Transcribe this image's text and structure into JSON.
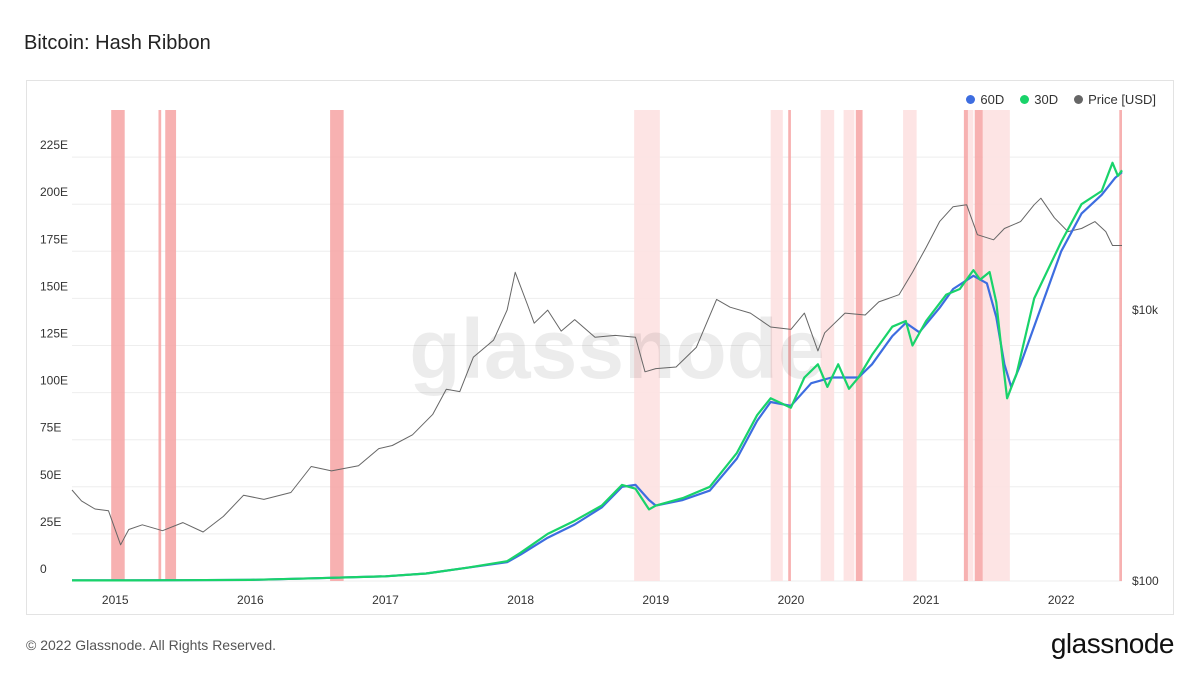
{
  "title": "Bitcoin: Hash Ribbon",
  "footer": "© 2022 Glassnode. All Rights Reserved.",
  "brand": "glassnode",
  "watermark": "glassnode",
  "colors": {
    "ma60": "#3d6de0",
    "ma30": "#19d36a",
    "price": "#666666",
    "band_dark": "#f6a3a3",
    "band_light": "#fde1e1",
    "grid": "#eeeeee"
  },
  "chart_data": {
    "type": "line",
    "title": "Bitcoin: Hash Ribbon",
    "legend": [
      {
        "name": "60D",
        "color": "#3d6de0"
      },
      {
        "name": "30D",
        "color": "#19d36a"
      },
      {
        "name": "Price [USD]",
        "color": "#666666"
      }
    ],
    "legend_position": "top-right",
    "x_range": [
      2014.68,
      2022.45
    ],
    "x_ticks": [
      {
        "v": 2015,
        "label": "2015"
      },
      {
        "v": 2016,
        "label": "2016"
      },
      {
        "v": 2017,
        "label": "2017"
      },
      {
        "v": 2018,
        "label": "2018"
      },
      {
        "v": 2019,
        "label": "2019"
      },
      {
        "v": 2020,
        "label": "2020"
      },
      {
        "v": 2021,
        "label": "2021"
      },
      {
        "v": 2022,
        "label": "2022"
      }
    ],
    "y_left": {
      "unit": "E",
      "range": [
        0,
        250
      ],
      "ticks": [
        {
          "v": 0,
          "label": "0"
        },
        {
          "v": 25,
          "label": "25E"
        },
        {
          "v": 50,
          "label": "50E"
        },
        {
          "v": 75,
          "label": "75E"
        },
        {
          "v": 100,
          "label": "100E"
        },
        {
          "v": 125,
          "label": "125E"
        },
        {
          "v": 150,
          "label": "150E"
        },
        {
          "v": 175,
          "label": "175E"
        },
        {
          "v": 200,
          "label": "200E"
        },
        {
          "v": 225,
          "label": "225E"
        }
      ]
    },
    "y_right": {
      "scale": "log",
      "range": [
        100,
        300000
      ],
      "ticks": [
        {
          "v": 100,
          "label": "$100"
        },
        {
          "v": 10000,
          "label": "$10k"
        }
      ]
    },
    "series": [
      {
        "name": "60D",
        "axis": "left",
        "points": [
          [
            2014.68,
            0.3
          ],
          [
            2015.0,
            0.3
          ],
          [
            2015.5,
            0.4
          ],
          [
            2016.0,
            0.6
          ],
          [
            2016.5,
            1.5
          ],
          [
            2017.0,
            2.5
          ],
          [
            2017.3,
            4
          ],
          [
            2017.6,
            7
          ],
          [
            2017.9,
            10
          ],
          [
            2018.0,
            14
          ],
          [
            2018.2,
            23
          ],
          [
            2018.4,
            30
          ],
          [
            2018.6,
            39
          ],
          [
            2018.75,
            50
          ],
          [
            2018.85,
            51
          ],
          [
            2018.95,
            43
          ],
          [
            2019.0,
            40
          ],
          [
            2019.2,
            43
          ],
          [
            2019.4,
            48
          ],
          [
            2019.6,
            65
          ],
          [
            2019.75,
            85
          ],
          [
            2019.85,
            95
          ],
          [
            2020.0,
            93
          ],
          [
            2020.15,
            105
          ],
          [
            2020.3,
            108
          ],
          [
            2020.5,
            108
          ],
          [
            2020.6,
            115
          ],
          [
            2020.75,
            130
          ],
          [
            2020.85,
            137
          ],
          [
            2020.95,
            132
          ],
          [
            2021.1,
            145
          ],
          [
            2021.2,
            155
          ],
          [
            2021.35,
            162
          ],
          [
            2021.45,
            158
          ],
          [
            2021.52,
            140
          ],
          [
            2021.58,
            115
          ],
          [
            2021.63,
            103
          ],
          [
            2021.7,
            115
          ],
          [
            2021.85,
            145
          ],
          [
            2022.0,
            175
          ],
          [
            2022.15,
            195
          ],
          [
            2022.3,
            205
          ],
          [
            2022.4,
            214
          ],
          [
            2022.45,
            217
          ]
        ]
      },
      {
        "name": "30D",
        "axis": "left",
        "points": [
          [
            2014.68,
            0.3
          ],
          [
            2015.0,
            0.3
          ],
          [
            2015.5,
            0.4
          ],
          [
            2016.0,
            0.6
          ],
          [
            2016.5,
            1.5
          ],
          [
            2017.0,
            2.5
          ],
          [
            2017.3,
            4
          ],
          [
            2017.6,
            7
          ],
          [
            2017.9,
            10.5
          ],
          [
            2018.0,
            15
          ],
          [
            2018.2,
            25
          ],
          [
            2018.4,
            32
          ],
          [
            2018.6,
            40
          ],
          [
            2018.75,
            51
          ],
          [
            2018.85,
            49
          ],
          [
            2018.95,
            38
          ],
          [
            2019.0,
            40
          ],
          [
            2019.2,
            44
          ],
          [
            2019.4,
            50
          ],
          [
            2019.6,
            68
          ],
          [
            2019.75,
            88
          ],
          [
            2019.85,
            97
          ],
          [
            2020.0,
            92
          ],
          [
            2020.1,
            108
          ],
          [
            2020.2,
            115
          ],
          [
            2020.27,
            103
          ],
          [
            2020.35,
            115
          ],
          [
            2020.43,
            102
          ],
          [
            2020.5,
            108
          ],
          [
            2020.6,
            120
          ],
          [
            2020.75,
            135
          ],
          [
            2020.85,
            138
          ],
          [
            2020.9,
            125
          ],
          [
            2021.0,
            138
          ],
          [
            2021.15,
            152
          ],
          [
            2021.25,
            155
          ],
          [
            2021.35,
            165
          ],
          [
            2021.4,
            160
          ],
          [
            2021.47,
            164
          ],
          [
            2021.52,
            148
          ],
          [
            2021.57,
            115
          ],
          [
            2021.6,
            97
          ],
          [
            2021.67,
            110
          ],
          [
            2021.8,
            150
          ],
          [
            2022.0,
            180
          ],
          [
            2022.15,
            200
          ],
          [
            2022.3,
            207
          ],
          [
            2022.38,
            222
          ],
          [
            2022.42,
            215
          ],
          [
            2022.45,
            218
          ]
        ]
      },
      {
        "name": "Price [USD]",
        "axis": "right",
        "points": [
          [
            2014.68,
            470
          ],
          [
            2014.75,
            390
          ],
          [
            2014.85,
            340
          ],
          [
            2014.95,
            330
          ],
          [
            2015.04,
            185
          ],
          [
            2015.1,
            240
          ],
          [
            2015.2,
            260
          ],
          [
            2015.35,
            235
          ],
          [
            2015.5,
            270
          ],
          [
            2015.65,
            230
          ],
          [
            2015.8,
            300
          ],
          [
            2015.95,
            430
          ],
          [
            2016.1,
            400
          ],
          [
            2016.3,
            450
          ],
          [
            2016.45,
            700
          ],
          [
            2016.6,
            650
          ],
          [
            2016.8,
            710
          ],
          [
            2016.95,
            950
          ],
          [
            2017.05,
            1000
          ],
          [
            2017.2,
            1200
          ],
          [
            2017.35,
            1700
          ],
          [
            2017.45,
            2600
          ],
          [
            2017.55,
            2500
          ],
          [
            2017.65,
            4500
          ],
          [
            2017.8,
            6000
          ],
          [
            2017.9,
            10000
          ],
          [
            2017.96,
            19000
          ],
          [
            2018.05,
            11000
          ],
          [
            2018.1,
            8000
          ],
          [
            2018.2,
            10000
          ],
          [
            2018.3,
            7000
          ],
          [
            2018.4,
            8500
          ],
          [
            2018.55,
            6300
          ],
          [
            2018.7,
            6500
          ],
          [
            2018.85,
            6300
          ],
          [
            2018.92,
            3500
          ],
          [
            2019.0,
            3700
          ],
          [
            2019.15,
            3800
          ],
          [
            2019.3,
            5300
          ],
          [
            2019.45,
            12000
          ],
          [
            2019.55,
            10500
          ],
          [
            2019.7,
            9500
          ],
          [
            2019.85,
            7500
          ],
          [
            2020.0,
            7200
          ],
          [
            2020.1,
            9500
          ],
          [
            2020.2,
            5000
          ],
          [
            2020.25,
            6800
          ],
          [
            2020.4,
            9500
          ],
          [
            2020.55,
            9200
          ],
          [
            2020.65,
            11500
          ],
          [
            2020.8,
            13000
          ],
          [
            2020.9,
            19000
          ],
          [
            2021.0,
            29000
          ],
          [
            2021.1,
            45000
          ],
          [
            2021.2,
            58000
          ],
          [
            2021.3,
            60000
          ],
          [
            2021.38,
            36000
          ],
          [
            2021.5,
            33000
          ],
          [
            2021.58,
            40000
          ],
          [
            2021.7,
            45000
          ],
          [
            2021.8,
            60000
          ],
          [
            2021.85,
            67000
          ],
          [
            2021.95,
            48000
          ],
          [
            2022.05,
            38000
          ],
          [
            2022.15,
            40000
          ],
          [
            2022.25,
            45000
          ],
          [
            2022.33,
            38000
          ],
          [
            2022.38,
            30000
          ],
          [
            2022.45,
            30000
          ]
        ]
      }
    ],
    "capitulation_bands": [
      {
        "start": 2014.97,
        "end": 2015.07,
        "shade": "dark"
      },
      {
        "start": 2015.32,
        "end": 2015.34,
        "shade": "dark"
      },
      {
        "start": 2015.37,
        "end": 2015.45,
        "shade": "dark"
      },
      {
        "start": 2016.59,
        "end": 2016.69,
        "shade": "dark"
      },
      {
        "start": 2018.84,
        "end": 2019.03,
        "shade": "light"
      },
      {
        "start": 2019.85,
        "end": 2019.94,
        "shade": "light"
      },
      {
        "start": 2019.98,
        "end": 2020.0,
        "shade": "dark"
      },
      {
        "start": 2020.22,
        "end": 2020.32,
        "shade": "light"
      },
      {
        "start": 2020.39,
        "end": 2020.47,
        "shade": "light"
      },
      {
        "start": 2020.48,
        "end": 2020.53,
        "shade": "dark"
      },
      {
        "start": 2020.83,
        "end": 2020.93,
        "shade": "light"
      },
      {
        "start": 2021.28,
        "end": 2021.31,
        "shade": "dark"
      },
      {
        "start": 2021.31,
        "end": 2021.35,
        "shade": "light"
      },
      {
        "start": 2021.36,
        "end": 2021.42,
        "shade": "dark"
      },
      {
        "start": 2021.42,
        "end": 2021.62,
        "shade": "light"
      },
      {
        "start": 2022.43,
        "end": 2022.45,
        "shade": "dark"
      }
    ]
  }
}
